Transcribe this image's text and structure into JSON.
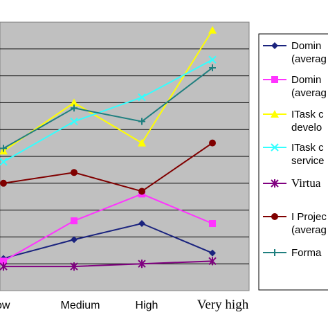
{
  "chart_data": {
    "type": "line",
    "categories": [
      "Low",
      "Medium",
      "High",
      "Very high"
    ],
    "category_labels_visible": [
      "ow",
      "Medium",
      "High",
      "Very high"
    ],
    "ylim": [
      0,
      100
    ],
    "grid": true,
    "legend_position": "right",
    "series": [
      {
        "name": "Domin",
        "name2": "(averag",
        "color": "#1a237e",
        "marker": "diamond",
        "values": [
          12,
          19,
          25,
          14
        ]
      },
      {
        "name": "Domin",
        "name2": "(averag",
        "color": "#ff33ff",
        "marker": "square",
        "values": [
          11,
          26,
          36,
          25
        ]
      },
      {
        "name": "ITask c",
        "name2": "develo",
        "color": "#ffff00",
        "marker": "triangle",
        "values": [
          52,
          70,
          55,
          97
        ]
      },
      {
        "name": "ITask c",
        "name2": "service",
        "color": "#33ffff",
        "marker": "x",
        "values": [
          48,
          63,
          72,
          86
        ]
      },
      {
        "name": "Virtua",
        "name2": "",
        "color": "#800080",
        "marker": "star",
        "values": [
          9,
          9,
          10,
          11
        ]
      },
      {
        "name": "I Projec",
        "name2": "(averag",
        "color": "#800000",
        "marker": "circle",
        "values": [
          40,
          44,
          37,
          55
        ]
      },
      {
        "name": "Forma",
        "name2": "",
        "color": "#1f7f7f",
        "marker": "plus",
        "values": [
          53,
          68,
          63,
          83
        ]
      }
    ]
  }
}
